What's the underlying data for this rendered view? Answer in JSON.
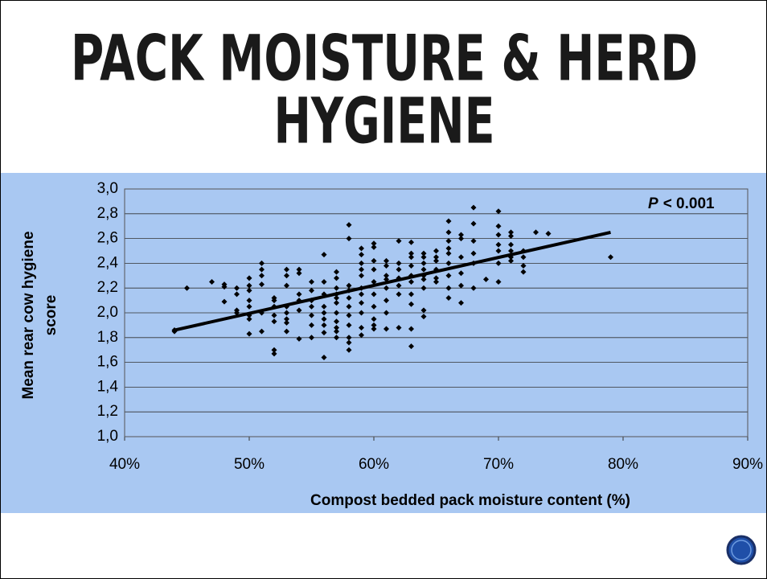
{
  "chart_data": {
    "type": "scatter",
    "title": [
      "PACK MOISTURE & HERD",
      "HYGIENE"
    ],
    "xlabel": "Compost bedded pack moisture content (%)",
    "ylabel": [
      "Mean rear cow hygiene",
      "score"
    ],
    "annotation": {
      "italic": "P",
      "text": "< 0.001"
    },
    "xlim": [
      40,
      90
    ],
    "xticks": [
      {
        "value": 40,
        "label": "40%"
      },
      {
        "value": 50,
        "label": "50%"
      },
      {
        "value": 60,
        "label": "60%"
      },
      {
        "value": 70,
        "label": "70%"
      },
      {
        "value": 80,
        "label": "80%"
      },
      {
        "value": 90,
        "label": "90%"
      }
    ],
    "ylim": [
      1.0,
      3.0
    ],
    "yticks": [
      {
        "value": 1.0,
        "label": "1,0"
      },
      {
        "value": 1.2,
        "label": "1,2"
      },
      {
        "value": 1.4,
        "label": "1,4"
      },
      {
        "value": 1.6,
        "label": "1,6"
      },
      {
        "value": 1.8,
        "label": "1,8"
      },
      {
        "value": 2.0,
        "label": "2,0"
      },
      {
        "value": 2.2,
        "label": "2,2"
      },
      {
        "value": 2.4,
        "label": "2,4"
      },
      {
        "value": 2.6,
        "label": "2,6"
      },
      {
        "value": 2.8,
        "label": "2,8"
      },
      {
        "value": 3.0,
        "label": "3,0"
      }
    ],
    "grid": true,
    "color": "#000000",
    "x": [
      44,
      44,
      45,
      47,
      48,
      48,
      48,
      49,
      49,
      49,
      49,
      50,
      50,
      50,
      50,
      50,
      50,
      50,
      50,
      51,
      51,
      51,
      51,
      51,
      51,
      52,
      52,
      52,
      52,
      52,
      52,
      52,
      53,
      53,
      53,
      53,
      53,
      53,
      53,
      53,
      54,
      54,
      54,
      54,
      54,
      54,
      55,
      55,
      55,
      55,
      55,
      55,
      55,
      56,
      56,
      56,
      56,
      56,
      56,
      56,
      56,
      56,
      57,
      57,
      57,
      57,
      57,
      57,
      57,
      57,
      57,
      57,
      57,
      58,
      58,
      58,
      58,
      58,
      58,
      58,
      58,
      58,
      58,
      58,
      59,
      59,
      59,
      59,
      59,
      59,
      59,
      59,
      59,
      59,
      59,
      60,
      60,
      60,
      60,
      60,
      60,
      60,
      60,
      60,
      60,
      61,
      61,
      61,
      61,
      61,
      61,
      61,
      61,
      62,
      62,
      62,
      62,
      62,
      62,
      62,
      63,
      63,
      63,
      63,
      63,
      63,
      63,
      63,
      63,
      63,
      64,
      64,
      64,
      64,
      64,
      64,
      64,
      64,
      64,
      65,
      65,
      65,
      65,
      65,
      65,
      66,
      66,
      66,
      66,
      66,
      66,
      66,
      66,
      66,
      67,
      67,
      67,
      67,
      67,
      67,
      68,
      68,
      68,
      68,
      68,
      68,
      69,
      70,
      70,
      70,
      70,
      70,
      70,
      70,
      71,
      71,
      71,
      71,
      71,
      71,
      72,
      72,
      72,
      72,
      73,
      74,
      79
    ],
    "values": [
      1.85,
      1.86,
      2.2,
      2.25,
      2.23,
      2.09,
      2.21,
      2.15,
      2.2,
      2.0,
      2.02,
      2.28,
      2.18,
      2.1,
      2.05,
      1.98,
      1.95,
      1.83,
      2.22,
      2.4,
      2.35,
      2.3,
      2.23,
      2.0,
      1.85,
      2.1,
      2.05,
      1.98,
      1.93,
      1.7,
      1.67,
      2.12,
      2.35,
      2.3,
      2.22,
      2.05,
      2.0,
      1.95,
      1.92,
      1.85,
      2.35,
      2.32,
      2.15,
      2.1,
      2.02,
      1.79,
      2.25,
      2.18,
      2.1,
      2.05,
      1.98,
      1.9,
      1.8,
      2.47,
      2.25,
      2.15,
      2.05,
      2.0,
      1.95,
      1.9,
      1.84,
      1.64,
      2.33,
      2.28,
      2.2,
      2.15,
      2.12,
      2.08,
      2.0,
      1.93,
      1.88,
      1.8,
      1.85,
      2.71,
      2.6,
      2.22,
      2.18,
      2.12,
      2.05,
      1.98,
      1.9,
      1.76,
      1.7,
      1.8,
      2.52,
      2.47,
      2.4,
      2.35,
      2.3,
      2.2,
      2.15,
      2.08,
      2.0,
      1.88,
      1.82,
      2.56,
      2.53,
      2.42,
      2.35,
      2.25,
      2.15,
      2.05,
      1.95,
      1.9,
      1.87,
      2.42,
      2.38,
      2.3,
      2.27,
      2.2,
      2.1,
      2.0,
      1.87,
      2.58,
      2.4,
      2.35,
      2.28,
      2.22,
      2.15,
      1.88,
      2.57,
      2.48,
      2.45,
      2.38,
      2.3,
      2.25,
      2.15,
      2.07,
      1.87,
      1.73,
      2.48,
      2.45,
      2.4,
      2.35,
      2.3,
      2.27,
      2.2,
      2.02,
      1.97,
      2.5,
      2.45,
      2.42,
      2.35,
      2.28,
      2.25,
      2.74,
      2.65,
      2.58,
      2.52,
      2.48,
      2.4,
      2.3,
      2.2,
      2.12,
      2.63,
      2.6,
      2.45,
      2.32,
      2.22,
      2.08,
      2.85,
      2.72,
      2.58,
      2.48,
      2.4,
      2.2,
      2.27,
      2.82,
      2.7,
      2.63,
      2.55,
      2.5,
      2.4,
      2.25,
      2.65,
      2.62,
      2.55,
      2.5,
      2.45,
      2.42,
      2.5,
      2.45,
      2.38,
      2.33,
      2.65,
      2.64,
      2.45
    ],
    "trendline": {
      "x": [
        44,
        79
      ],
      "values": [
        1.86,
        2.65
      ]
    }
  }
}
